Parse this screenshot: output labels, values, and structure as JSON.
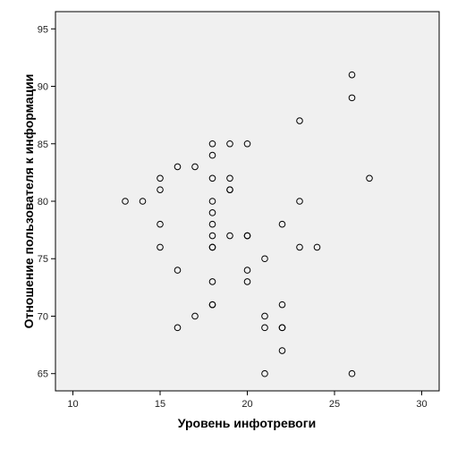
{
  "chart_data": {
    "type": "scatter",
    "title": "",
    "xlabel": "Уровень инфотревоги",
    "ylabel": "Отношение пользователя к информации",
    "xlim": [
      9,
      31
    ],
    "ylim": [
      63.5,
      96.5
    ],
    "xticks": [
      10,
      15,
      20,
      25,
      30
    ],
    "yticks": [
      65,
      70,
      75,
      80,
      85,
      90,
      95
    ],
    "grid": false,
    "legend": "none",
    "plot_background": "#f0f0f0",
    "marker": "open-circle",
    "marker_color": "#000000",
    "points": [
      {
        "x": 13,
        "y": 80
      },
      {
        "x": 14,
        "y": 80
      },
      {
        "x": 15,
        "y": 82
      },
      {
        "x": 15,
        "y": 81
      },
      {
        "x": 15,
        "y": 78
      },
      {
        "x": 15,
        "y": 76
      },
      {
        "x": 16,
        "y": 83
      },
      {
        "x": 16,
        "y": 74
      },
      {
        "x": 16,
        "y": 69
      },
      {
        "x": 17,
        "y": 83
      },
      {
        "x": 17,
        "y": 70
      },
      {
        "x": 18,
        "y": 85
      },
      {
        "x": 18,
        "y": 84
      },
      {
        "x": 18,
        "y": 82
      },
      {
        "x": 18,
        "y": 80
      },
      {
        "x": 18,
        "y": 79
      },
      {
        "x": 18,
        "y": 78
      },
      {
        "x": 18,
        "y": 77
      },
      {
        "x": 18,
        "y": 76
      },
      {
        "x": 18,
        "y": 76
      },
      {
        "x": 18,
        "y": 73
      },
      {
        "x": 18,
        "y": 71
      },
      {
        "x": 18,
        "y": 71
      },
      {
        "x": 19,
        "y": 85
      },
      {
        "x": 19,
        "y": 82
      },
      {
        "x": 19,
        "y": 81
      },
      {
        "x": 19,
        "y": 81
      },
      {
        "x": 19,
        "y": 77
      },
      {
        "x": 20,
        "y": 85
      },
      {
        "x": 20,
        "y": 77
      },
      {
        "x": 20,
        "y": 77
      },
      {
        "x": 20,
        "y": 74
      },
      {
        "x": 20,
        "y": 73
      },
      {
        "x": 21,
        "y": 75
      },
      {
        "x": 21,
        "y": 70
      },
      {
        "x": 21,
        "y": 69
      },
      {
        "x": 21,
        "y": 65
      },
      {
        "x": 22,
        "y": 78
      },
      {
        "x": 22,
        "y": 71
      },
      {
        "x": 22,
        "y": 69
      },
      {
        "x": 22,
        "y": 69
      },
      {
        "x": 22,
        "y": 67
      },
      {
        "x": 23,
        "y": 87
      },
      {
        "x": 23,
        "y": 80
      },
      {
        "x": 23,
        "y": 76
      },
      {
        "x": 24,
        "y": 76
      },
      {
        "x": 26,
        "y": 91
      },
      {
        "x": 26,
        "y": 89
      },
      {
        "x": 26,
        "y": 65
      },
      {
        "x": 27,
        "y": 82
      }
    ]
  }
}
